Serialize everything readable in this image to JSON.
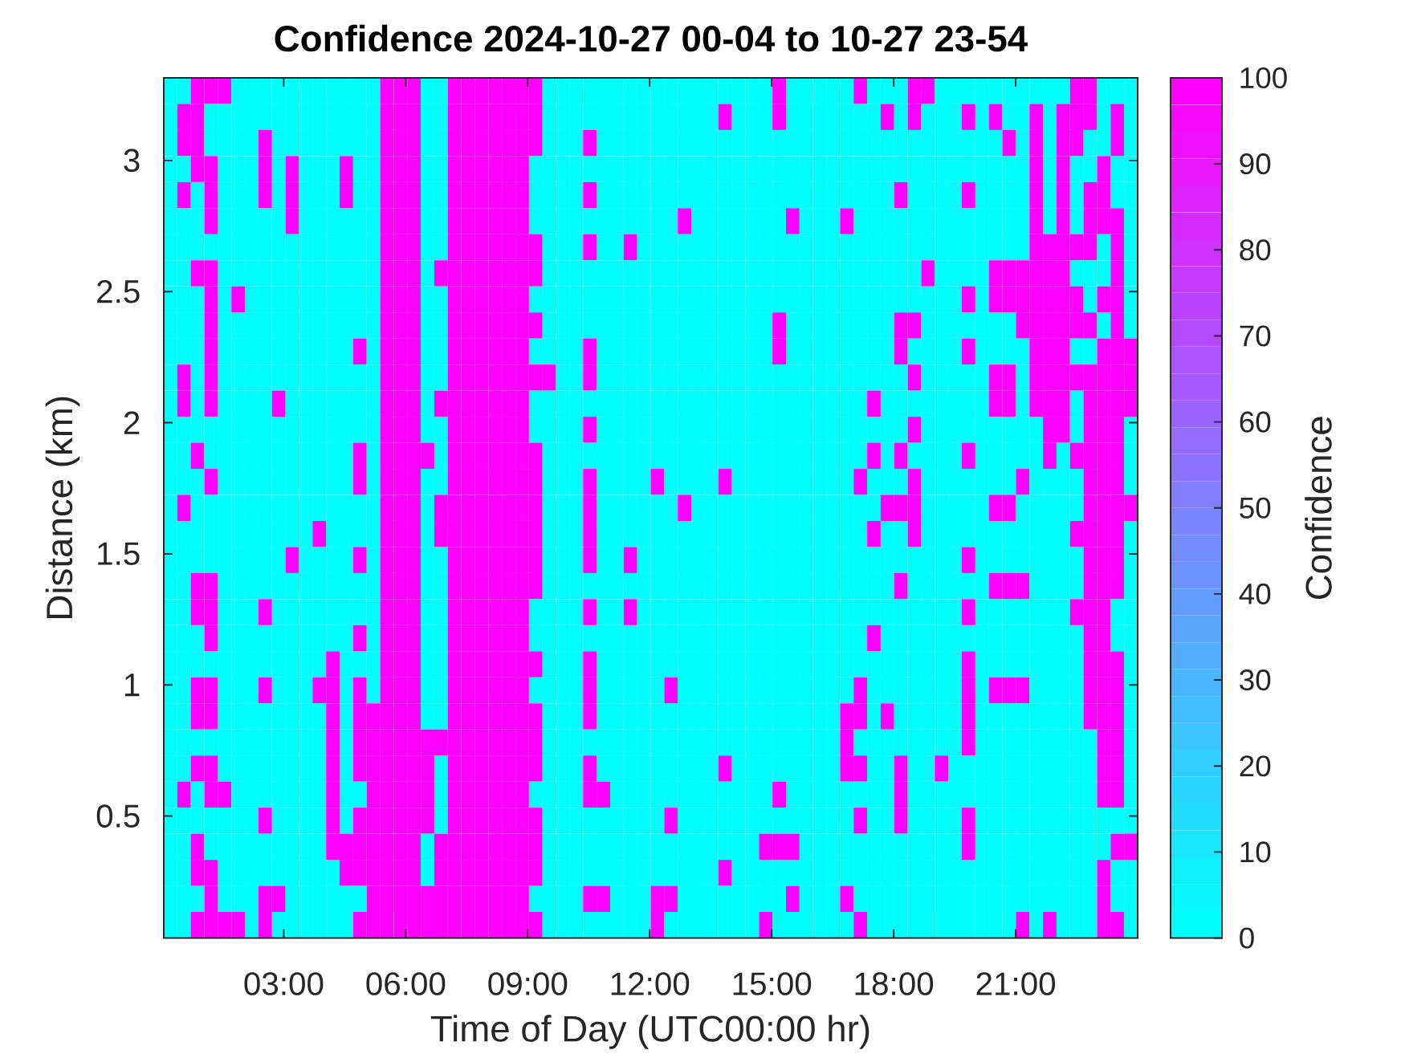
{
  "chart_data": {
    "type": "heatmap",
    "title": "Confidence 2024-10-27 00-04 to 10-27 23-54",
    "xlabel": "Time of Day (UTC00:00 hr)",
    "ylabel": "Distance (km)",
    "clabel": "Confidence",
    "xlim": [
      0.05,
      24
    ],
    "ylim": [
      0.035,
      3.315
    ],
    "xticks": [
      {
        "value": 3,
        "label": "03:00"
      },
      {
        "value": 6,
        "label": "06:00"
      },
      {
        "value": 9,
        "label": "09:00"
      },
      {
        "value": 12,
        "label": "12:00"
      },
      {
        "value": 15,
        "label": "15:00"
      },
      {
        "value": 18,
        "label": "18:00"
      },
      {
        "value": 21,
        "label": "21:00"
      }
    ],
    "yticks": [
      0.5,
      1,
      1.5,
      2,
      2.5,
      3
    ],
    "clim": [
      0,
      100
    ],
    "cticks": [
      0,
      10,
      20,
      30,
      40,
      50,
      60,
      70,
      80,
      90,
      100
    ],
    "cells": [
      [
        0,
        0,
        100,
        100,
        100,
        0,
        0,
        0,
        0,
        0,
        0,
        0,
        0,
        0,
        0,
        0,
        100,
        100,
        100,
        0,
        0,
        100,
        100,
        100,
        100,
        100,
        100,
        100,
        0,
        0,
        0,
        0,
        0,
        0,
        0,
        0,
        0,
        0,
        0,
        0,
        0,
        0,
        0,
        0,
        0,
        100,
        0,
        0,
        0,
        0,
        0,
        100,
        0,
        0,
        0,
        100,
        100,
        0,
        0,
        0,
        0,
        0,
        0,
        0,
        0,
        0,
        0,
        100,
        100,
        0,
        0,
        0
      ],
      [
        0,
        100,
        100,
        0,
        0,
        0,
        0,
        0,
        0,
        0,
        0,
        0,
        0,
        0,
        0,
        0,
        100,
        100,
        100,
        0,
        0,
        100,
        100,
        100,
        100,
        100,
        100,
        100,
        0,
        0,
        0,
        0,
        0,
        0,
        0,
        0,
        0,
        0,
        0,
        0,
        0,
        100,
        0,
        0,
        0,
        100,
        0,
        0,
        0,
        0,
        0,
        0,
        0,
        100,
        0,
        100,
        0,
        0,
        0,
        100,
        0,
        100,
        0,
        0,
        100,
        0,
        100,
        100,
        100,
        0,
        100,
        0
      ],
      [
        0,
        100,
        100,
        0,
        0,
        0,
        0,
        100,
        0,
        0,
        0,
        0,
        0,
        0,
        0,
        0,
        100,
        100,
        100,
        0,
        0,
        100,
        100,
        100,
        100,
        100,
        100,
        100,
        0,
        0,
        0,
        100,
        0,
        0,
        0,
        0,
        0,
        0,
        0,
        0,
        0,
        0,
        0,
        0,
        0,
        0,
        0,
        0,
        0,
        0,
        0,
        0,
        0,
        0,
        0,
        0,
        0,
        0,
        0,
        0,
        0,
        0,
        100,
        0,
        100,
        0,
        100,
        100,
        0,
        0,
        100,
        0
      ],
      [
        0,
        0,
        100,
        100,
        0,
        0,
        0,
        100,
        0,
        100,
        0,
        0,
        0,
        100,
        0,
        0,
        100,
        100,
        100,
        0,
        0,
        100,
        100,
        100,
        100,
        100,
        100,
        0,
        0,
        0,
        0,
        0,
        0,
        0,
        0,
        0,
        0,
        0,
        0,
        0,
        0,
        0,
        0,
        0,
        0,
        0,
        0,
        0,
        0,
        0,
        0,
        0,
        0,
        0,
        0,
        0,
        0,
        0,
        0,
        0,
        0,
        0,
        0,
        0,
        100,
        0,
        100,
        0,
        0,
        100,
        0,
        0
      ],
      [
        0,
        100,
        0,
        100,
        0,
        0,
        0,
        100,
        0,
        100,
        0,
        0,
        0,
        100,
        0,
        0,
        100,
        100,
        100,
        0,
        0,
        100,
        100,
        100,
        100,
        100,
        100,
        0,
        0,
        0,
        0,
        100,
        0,
        0,
        0,
        0,
        0,
        0,
        0,
        0,
        0,
        0,
        0,
        0,
        0,
        0,
        0,
        0,
        0,
        0,
        0,
        0,
        0,
        0,
        100,
        0,
        0,
        0,
        0,
        100,
        0,
        0,
        0,
        0,
        100,
        0,
        100,
        0,
        100,
        100,
        0,
        0
      ],
      [
        0,
        0,
        0,
        100,
        0,
        0,
        0,
        0,
        0,
        100,
        0,
        0,
        0,
        0,
        0,
        0,
        100,
        100,
        100,
        0,
        0,
        100,
        100,
        100,
        100,
        100,
        100,
        0,
        0,
        0,
        0,
        0,
        0,
        0,
        0,
        0,
        0,
        0,
        100,
        0,
        0,
        0,
        0,
        0,
        0,
        0,
        100,
        0,
        0,
        0,
        100,
        0,
        0,
        0,
        0,
        0,
        0,
        0,
        0,
        0,
        0,
        0,
        0,
        0,
        100,
        0,
        100,
        0,
        100,
        100,
        100,
        0
      ],
      [
        0,
        0,
        0,
        0,
        0,
        0,
        0,
        0,
        0,
        0,
        0,
        0,
        0,
        0,
        0,
        0,
        100,
        100,
        100,
        0,
        0,
        100,
        100,
        100,
        100,
        100,
        100,
        100,
        0,
        0,
        0,
        100,
        0,
        0,
        100,
        0,
        0,
        0,
        0,
        0,
        0,
        0,
        0,
        0,
        0,
        0,
        0,
        0,
        0,
        0,
        0,
        0,
        0,
        0,
        0,
        0,
        0,
        0,
        0,
        0,
        0,
        0,
        0,
        0,
        100,
        100,
        100,
        100,
        100,
        0,
        100,
        0
      ],
      [
        0,
        0,
        100,
        100,
        0,
        0,
        0,
        0,
        0,
        0,
        0,
        0,
        0,
        0,
        0,
        0,
        100,
        100,
        100,
        0,
        100,
        100,
        100,
        100,
        100,
        100,
        100,
        100,
        0,
        0,
        0,
        0,
        0,
        0,
        0,
        0,
        0,
        0,
        0,
        0,
        0,
        0,
        0,
        0,
        0,
        0,
        0,
        0,
        0,
        0,
        0,
        0,
        0,
        0,
        0,
        0,
        100,
        0,
        0,
        0,
        0,
        100,
        100,
        100,
        100,
        100,
        100,
        0,
        0,
        0,
        100,
        0
      ],
      [
        0,
        0,
        0,
        100,
        0,
        100,
        0,
        0,
        0,
        0,
        0,
        0,
        0,
        0,
        0,
        0,
        100,
        100,
        100,
        0,
        0,
        100,
        100,
        100,
        100,
        100,
        100,
        0,
        0,
        0,
        0,
        0,
        0,
        0,
        0,
        0,
        0,
        0,
        0,
        0,
        0,
        0,
        0,
        0,
        0,
        0,
        0,
        0,
        0,
        0,
        0,
        0,
        0,
        0,
        0,
        0,
        0,
        0,
        0,
        100,
        0,
        100,
        100,
        100,
        100,
        100,
        100,
        100,
        0,
        100,
        100,
        0
      ],
      [
        0,
        0,
        0,
        100,
        0,
        0,
        0,
        0,
        0,
        0,
        0,
        0,
        0,
        0,
        0,
        0,
        100,
        100,
        100,
        0,
        0,
        100,
        100,
        100,
        100,
        100,
        100,
        100,
        0,
        0,
        0,
        0,
        0,
        0,
        0,
        0,
        0,
        0,
        0,
        0,
        0,
        0,
        0,
        0,
        0,
        100,
        0,
        0,
        0,
        0,
        0,
        0,
        0,
        0,
        100,
        100,
        0,
        0,
        0,
        0,
        0,
        0,
        0,
        100,
        100,
        100,
        100,
        100,
        100,
        0,
        100,
        0
      ],
      [
        0,
        0,
        0,
        100,
        0,
        0,
        0,
        0,
        0,
        0,
        0,
        0,
        0,
        0,
        100,
        0,
        100,
        100,
        100,
        0,
        0,
        100,
        100,
        100,
        100,
        100,
        100,
        0,
        0,
        0,
        0,
        100,
        0,
        0,
        0,
        0,
        0,
        0,
        0,
        0,
        0,
        0,
        0,
        0,
        0,
        100,
        0,
        0,
        0,
        0,
        0,
        0,
        0,
        0,
        100,
        0,
        0,
        0,
        0,
        100,
        0,
        0,
        0,
        0,
        100,
        100,
        100,
        0,
        0,
        100,
        100,
        100
      ],
      [
        0,
        100,
        0,
        100,
        0,
        0,
        0,
        0,
        0,
        0,
        0,
        0,
        0,
        0,
        0,
        0,
        100,
        100,
        100,
        0,
        0,
        100,
        100,
        100,
        100,
        100,
        100,
        100,
        100,
        0,
        0,
        100,
        0,
        0,
        0,
        0,
        0,
        0,
        0,
        0,
        0,
        0,
        0,
        0,
        0,
        0,
        0,
        0,
        0,
        0,
        0,
        0,
        0,
        0,
        0,
        100,
        0,
        0,
        0,
        0,
        0,
        100,
        100,
        0,
        100,
        100,
        100,
        100,
        100,
        100,
        100,
        100
      ],
      [
        0,
        100,
        0,
        100,
        0,
        0,
        0,
        0,
        100,
        0,
        0,
        0,
        0,
        0,
        0,
        0,
        100,
        100,
        100,
        0,
        100,
        100,
        100,
        100,
        100,
        100,
        100,
        0,
        0,
        0,
        0,
        0,
        0,
        0,
        0,
        0,
        0,
        0,
        0,
        0,
        0,
        0,
        0,
        0,
        0,
        0,
        0,
        0,
        0,
        0,
        0,
        0,
        100,
        0,
        0,
        0,
        0,
        0,
        0,
        0,
        0,
        100,
        100,
        0,
        100,
        100,
        100,
        0,
        100,
        100,
        100,
        100
      ],
      [
        0,
        0,
        0,
        0,
        0,
        0,
        0,
        0,
        0,
        0,
        0,
        0,
        0,
        0,
        0,
        0,
        100,
        100,
        100,
        0,
        0,
        100,
        100,
        100,
        100,
        100,
        100,
        0,
        0,
        0,
        0,
        100,
        0,
        0,
        0,
        0,
        0,
        0,
        0,
        0,
        0,
        0,
        0,
        0,
        0,
        0,
        0,
        0,
        0,
        0,
        0,
        0,
        0,
        0,
        0,
        100,
        0,
        0,
        0,
        0,
        0,
        0,
        0,
        0,
        0,
        100,
        100,
        0,
        100,
        100,
        100,
        0
      ],
      [
        0,
        0,
        100,
        0,
        0,
        0,
        0,
        0,
        0,
        0,
        0,
        0,
        0,
        0,
        100,
        0,
        100,
        100,
        100,
        100,
        0,
        100,
        100,
        100,
        100,
        100,
        100,
        100,
        0,
        0,
        0,
        0,
        0,
        0,
        0,
        0,
        0,
        0,
        0,
        0,
        0,
        0,
        0,
        0,
        0,
        0,
        0,
        0,
        0,
        0,
        0,
        0,
        100,
        0,
        100,
        0,
        0,
        0,
        0,
        100,
        0,
        0,
        0,
        0,
        0,
        100,
        0,
        100,
        100,
        100,
        100,
        0
      ],
      [
        0,
        0,
        0,
        100,
        0,
        0,
        0,
        0,
        0,
        0,
        0,
        0,
        0,
        0,
        100,
        0,
        100,
        100,
        100,
        0,
        0,
        100,
        100,
        100,
        100,
        100,
        100,
        100,
        0,
        0,
        0,
        100,
        0,
        0,
        0,
        0,
        100,
        0,
        0,
        0,
        0,
        100,
        0,
        0,
        0,
        0,
        0,
        0,
        0,
        0,
        0,
        100,
        0,
        0,
        0,
        100,
        0,
        0,
        0,
        0,
        0,
        0,
        0,
        100,
        0,
        0,
        0,
        0,
        100,
        100,
        100,
        0
      ],
      [
        0,
        100,
        0,
        0,
        0,
        0,
        0,
        0,
        0,
        0,
        0,
        0,
        0,
        0,
        0,
        0,
        100,
        100,
        100,
        0,
        100,
        100,
        100,
        100,
        100,
        100,
        100,
        100,
        0,
        0,
        0,
        100,
        0,
        0,
        0,
        0,
        0,
        0,
        100,
        0,
        0,
        0,
        0,
        0,
        0,
        0,
        0,
        0,
        0,
        0,
        0,
        0,
        0,
        100,
        100,
        100,
        0,
        0,
        0,
        0,
        0,
        100,
        100,
        0,
        0,
        0,
        0,
        0,
        100,
        100,
        100,
        100
      ],
      [
        0,
        0,
        0,
        0,
        0,
        0,
        0,
        0,
        0,
        0,
        0,
        100,
        0,
        0,
        0,
        0,
        100,
        100,
        100,
        0,
        100,
        100,
        100,
        100,
        100,
        100,
        100,
        100,
        0,
        0,
        0,
        100,
        0,
        0,
        0,
        0,
        0,
        0,
        0,
        0,
        0,
        0,
        0,
        0,
        0,
        0,
        0,
        0,
        0,
        0,
        0,
        0,
        100,
        0,
        0,
        100,
        0,
        0,
        0,
        0,
        0,
        0,
        0,
        0,
        0,
        0,
        0,
        100,
        100,
        100,
        100,
        0
      ],
      [
        0,
        0,
        0,
        0,
        0,
        0,
        0,
        0,
        0,
        100,
        0,
        0,
        0,
        0,
        100,
        0,
        100,
        100,
        100,
        0,
        0,
        100,
        100,
        100,
        100,
        100,
        100,
        100,
        0,
        0,
        0,
        100,
        0,
        0,
        100,
        0,
        0,
        0,
        0,
        0,
        0,
        0,
        0,
        0,
        0,
        0,
        0,
        0,
        0,
        0,
        0,
        0,
        0,
        0,
        0,
        0,
        0,
        0,
        0,
        100,
        0,
        0,
        0,
        0,
        0,
        0,
        0,
        0,
        100,
        100,
        100,
        0
      ],
      [
        0,
        0,
        100,
        100,
        0,
        0,
        0,
        0,
        0,
        0,
        0,
        0,
        0,
        0,
        0,
        0,
        100,
        100,
        100,
        0,
        0,
        100,
        100,
        100,
        100,
        100,
        100,
        100,
        0,
        0,
        0,
        0,
        0,
        0,
        0,
        0,
        0,
        0,
        0,
        0,
        0,
        0,
        0,
        0,
        0,
        0,
        0,
        0,
        0,
        0,
        0,
        0,
        0,
        0,
        100,
        0,
        0,
        0,
        0,
        0,
        0,
        100,
        100,
        100,
        0,
        0,
        0,
        0,
        100,
        100,
        100,
        0
      ],
      [
        0,
        0,
        100,
        100,
        0,
        0,
        0,
        100,
        0,
        0,
        0,
        0,
        0,
        0,
        0,
        0,
        100,
        100,
        100,
        0,
        0,
        100,
        100,
        100,
        100,
        100,
        100,
        0,
        0,
        0,
        0,
        100,
        0,
        0,
        100,
        0,
        0,
        0,
        0,
        0,
        0,
        0,
        0,
        0,
        0,
        0,
        0,
        0,
        0,
        0,
        0,
        0,
        0,
        0,
        0,
        0,
        0,
        0,
        0,
        100,
        0,
        0,
        0,
        0,
        0,
        0,
        0,
        100,
        100,
        100,
        0,
        0
      ],
      [
        0,
        0,
        0,
        100,
        0,
        0,
        0,
        0,
        0,
        0,
        0,
        0,
        0,
        0,
        100,
        0,
        100,
        100,
        100,
        0,
        0,
        100,
        100,
        100,
        100,
        100,
        100,
        0,
        0,
        0,
        0,
        0,
        0,
        0,
        0,
        0,
        0,
        0,
        0,
        0,
        0,
        0,
        0,
        0,
        0,
        0,
        0,
        0,
        0,
        0,
        0,
        0,
        100,
        0,
        0,
        0,
        0,
        0,
        0,
        0,
        0,
        0,
        0,
        0,
        0,
        0,
        0,
        0,
        100,
        100,
        0,
        0
      ],
      [
        0,
        0,
        0,
        0,
        0,
        0,
        0,
        0,
        0,
        0,
        0,
        0,
        100,
        0,
        0,
        0,
        100,
        100,
        100,
        0,
        0,
        100,
        100,
        100,
        100,
        100,
        100,
        100,
        0,
        0,
        0,
        100,
        0,
        0,
        0,
        0,
        0,
        0,
        0,
        0,
        0,
        0,
        0,
        0,
        0,
        0,
        0,
        0,
        0,
        0,
        0,
        0,
        0,
        0,
        0,
        0,
        0,
        0,
        0,
        100,
        0,
        0,
        0,
        0,
        0,
        0,
        0,
        0,
        100,
        100,
        100,
        0
      ],
      [
        0,
        0,
        100,
        100,
        0,
        0,
        0,
        100,
        0,
        0,
        0,
        100,
        100,
        0,
        100,
        0,
        100,
        100,
        100,
        0,
        0,
        100,
        100,
        100,
        100,
        100,
        100,
        0,
        0,
        0,
        0,
        100,
        0,
        0,
        0,
        0,
        0,
        100,
        0,
        0,
        0,
        0,
        0,
        0,
        0,
        0,
        0,
        0,
        0,
        0,
        0,
        100,
        0,
        0,
        0,
        0,
        0,
        0,
        0,
        100,
        0,
        100,
        100,
        100,
        0,
        0,
        0,
        0,
        100,
        100,
        100,
        0
      ],
      [
        0,
        0,
        100,
        100,
        0,
        0,
        0,
        0,
        0,
        0,
        0,
        0,
        100,
        0,
        100,
        100,
        100,
        100,
        100,
        0,
        0,
        100,
        100,
        100,
        100,
        100,
        100,
        100,
        0,
        0,
        0,
        100,
        0,
        0,
        0,
        0,
        0,
        0,
        0,
        0,
        0,
        0,
        0,
        0,
        0,
        0,
        0,
        0,
        0,
        0,
        100,
        100,
        0,
        100,
        0,
        0,
        0,
        0,
        0,
        100,
        0,
        0,
        0,
        0,
        0,
        0,
        0,
        0,
        100,
        100,
        100,
        0
      ],
      [
        0,
        0,
        0,
        0,
        0,
        0,
        0,
        0,
        0,
        0,
        0,
        0,
        100,
        0,
        100,
        100,
        100,
        100,
        100,
        100,
        100,
        100,
        100,
        100,
        100,
        100,
        100,
        100,
        0,
        0,
        0,
        0,
        0,
        0,
        0,
        0,
        0,
        0,
        0,
        0,
        0,
        0,
        0,
        0,
        0,
        0,
        0,
        0,
        0,
        0,
        100,
        0,
        0,
        0,
        0,
        0,
        0,
        0,
        0,
        100,
        0,
        0,
        0,
        0,
        0,
        0,
        0,
        0,
        0,
        100,
        100,
        0
      ],
      [
        0,
        0,
        100,
        100,
        0,
        0,
        0,
        0,
        0,
        0,
        0,
        0,
        100,
        0,
        100,
        100,
        100,
        100,
        100,
        100,
        0,
        100,
        100,
        100,
        100,
        100,
        100,
        100,
        0,
        0,
        0,
        100,
        0,
        0,
        0,
        0,
        0,
        0,
        0,
        0,
        0,
        100,
        0,
        0,
        0,
        0,
        0,
        0,
        0,
        0,
        100,
        100,
        0,
        0,
        100,
        0,
        0,
        100,
        0,
        0,
        0,
        0,
        0,
        0,
        0,
        0,
        0,
        0,
        0,
        100,
        100,
        0
      ],
      [
        0,
        100,
        0,
        100,
        100,
        0,
        0,
        0,
        0,
        0,
        0,
        0,
        100,
        0,
        0,
        100,
        100,
        100,
        100,
        100,
        0,
        100,
        100,
        100,
        100,
        100,
        100,
        0,
        0,
        0,
        0,
        100,
        100,
        0,
        0,
        0,
        0,
        0,
        0,
        0,
        0,
        0,
        0,
        0,
        0,
        100,
        0,
        0,
        0,
        0,
        0,
        0,
        0,
        0,
        100,
        0,
        0,
        0,
        0,
        0,
        0,
        0,
        0,
        0,
        0,
        0,
        0,
        0,
        0,
        100,
        100,
        0
      ],
      [
        0,
        0,
        0,
        0,
        0,
        0,
        0,
        100,
        0,
        0,
        0,
        0,
        100,
        0,
        100,
        100,
        100,
        100,
        100,
        100,
        0,
        100,
        100,
        100,
        100,
        100,
        100,
        100,
        0,
        0,
        0,
        0,
        0,
        0,
        0,
        0,
        0,
        100,
        0,
        0,
        0,
        0,
        0,
        0,
        0,
        0,
        0,
        0,
        0,
        0,
        0,
        100,
        0,
        0,
        100,
        0,
        0,
        0,
        0,
        100,
        0,
        0,
        0,
        0,
        0,
        0,
        0,
        0,
        0,
        0,
        0,
        0
      ],
      [
        0,
        0,
        100,
        0,
        0,
        0,
        0,
        0,
        0,
        0,
        0,
        0,
        100,
        100,
        100,
        100,
        100,
        100,
        100,
        0,
        100,
        100,
        100,
        100,
        100,
        100,
        100,
        100,
        0,
        0,
        0,
        0,
        0,
        0,
        0,
        0,
        0,
        0,
        0,
        0,
        0,
        0,
        0,
        0,
        100,
        100,
        100,
        0,
        0,
        0,
        0,
        0,
        0,
        0,
        0,
        0,
        0,
        0,
        0,
        100,
        0,
        0,
        0,
        0,
        0,
        0,
        0,
        0,
        0,
        0,
        100,
        100
      ],
      [
        0,
        0,
        100,
        100,
        0,
        0,
        0,
        0,
        0,
        0,
        0,
        0,
        0,
        100,
        100,
        100,
        100,
        100,
        100,
        0,
        100,
        100,
        100,
        100,
        100,
        100,
        100,
        100,
        0,
        0,
        0,
        0,
        0,
        0,
        0,
        0,
        0,
        0,
        0,
        0,
        0,
        100,
        0,
        0,
        0,
        0,
        0,
        0,
        0,
        0,
        0,
        0,
        0,
        0,
        0,
        0,
        0,
        0,
        0,
        0,
        0,
        0,
        0,
        0,
        0,
        0,
        0,
        0,
        0,
        100,
        0,
        0
      ],
      [
        0,
        0,
        0,
        100,
        0,
        0,
        0,
        100,
        100,
        0,
        0,
        0,
        0,
        0,
        0,
        100,
        100,
        100,
        100,
        100,
        100,
        100,
        100,
        100,
        100,
        100,
        100,
        0,
        0,
        0,
        0,
        100,
        100,
        0,
        0,
        0,
        100,
        100,
        0,
        0,
        0,
        0,
        0,
        0,
        0,
        0,
        100,
        0,
        0,
        0,
        100,
        0,
        0,
        0,
        0,
        0,
        0,
        0,
        0,
        0,
        0,
        0,
        0,
        0,
        0,
        0,
        0,
        0,
        0,
        100,
        0,
        0
      ],
      [
        0,
        0,
        100,
        100,
        100,
        100,
        0,
        100,
        0,
        0,
        0,
        0,
        0,
        0,
        100,
        100,
        100,
        100,
        100,
        100,
        100,
        100,
        100,
        100,
        100,
        100,
        100,
        100,
        0,
        0,
        0,
        0,
        0,
        0,
        0,
        0,
        100,
        0,
        0,
        0,
        0,
        0,
        0,
        0,
        100,
        0,
        0,
        0,
        0,
        0,
        0,
        100,
        0,
        0,
        0,
        0,
        0,
        0,
        0,
        0,
        0,
        0,
        0,
        100,
        0,
        100,
        0,
        0,
        0,
        100,
        100,
        0
      ]
    ]
  }
}
